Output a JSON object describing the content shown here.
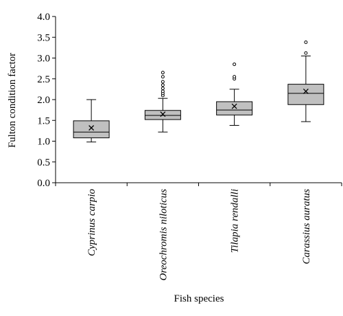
{
  "chart_data": {
    "type": "box",
    "title": "",
    "xlabel": "Fish species",
    "ylabel": "Fulton condition factor",
    "ylim": [
      0,
      4.0
    ],
    "y_ticks": [
      "0.0",
      "0.5",
      "1.0",
      "1.5",
      "2.0",
      "2.5",
      "3.0",
      "3.5",
      "4.0"
    ],
    "grid": false,
    "box_color": "#c0c0c0",
    "categories": [
      "Cyprinus carpio",
      "Oreochromis niloticus",
      "Tilapia rendalli",
      "Carassius auratus"
    ],
    "boxes": [
      {
        "category": "Cyprinus carpio",
        "min": 0.98,
        "q1": 1.08,
        "median": 1.22,
        "q3": 1.49,
        "max": 2.0,
        "mean": 1.32,
        "outliers": []
      },
      {
        "category": "Oreochromis niloticus",
        "min": 1.22,
        "q1": 1.52,
        "median": 1.62,
        "q3": 1.74,
        "max": 2.03,
        "mean": 1.65,
        "outliers": [
          2.1,
          2.15,
          2.2,
          2.27,
          2.35,
          2.43,
          2.55,
          2.65
        ]
      },
      {
        "category": "Tilapia rendalli",
        "min": 1.38,
        "q1": 1.63,
        "median": 1.75,
        "q3": 1.95,
        "max": 2.25,
        "mean": 1.84,
        "outliers": [
          2.5,
          2.55,
          2.85
        ]
      },
      {
        "category": "Carassius auratus",
        "min": 1.47,
        "q1": 1.88,
        "median": 2.15,
        "q3": 2.37,
        "max": 3.05,
        "mean": 2.2,
        "outliers": [
          3.12,
          3.38
        ]
      }
    ]
  }
}
